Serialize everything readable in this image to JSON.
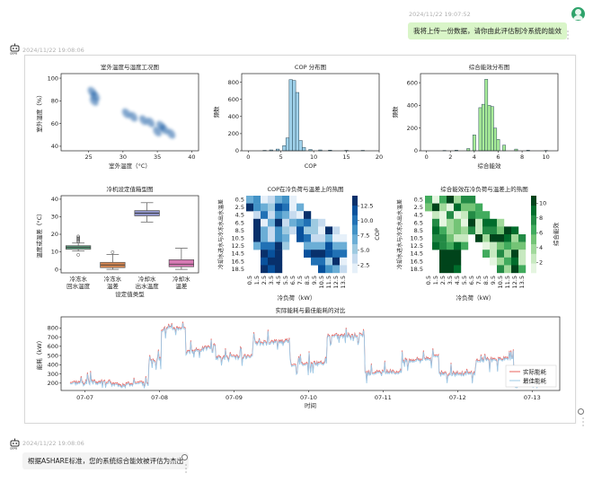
{
  "messages": {
    "user": {
      "timestamp": "2024/11/22 19:07:52",
      "text": "我将上传一份数据，请你由此评估制冷系统的能效"
    },
    "bot_chart": {
      "timestamp": "2024/11/22 19:08:06"
    },
    "bot_text": {
      "timestamp": "2024/11/22 19:08:06",
      "text": "根据ASHARE标准，您的系统综合能效被评估为杰出"
    }
  },
  "icons": {
    "user_avatar": "user-avatar-icon",
    "bot": "robot-icon",
    "more": "more-vertical-icon",
    "radio": "radio-circle-icon"
  },
  "colors": {
    "user_bubble": "#d9f5c8",
    "bot_bubble": "#f3f3f3",
    "scatter": "#1f5fa6",
    "cop_hist": "#9fd1ea",
    "eff_hist": "#a8ec98",
    "actual_line": "#e8635e",
    "best_line": "#9cc8e6"
  },
  "chart_data": [
    {
      "type": "scatter",
      "title": "室外温度与湿度工况图",
      "xlabel": "室外温度（°C）",
      "ylabel": "室外湿度（%）",
      "xticks": [
        "25",
        "30",
        "35",
        "40"
      ],
      "yticks": [
        "40",
        "60",
        "80",
        "100"
      ],
      "xlim": [
        21,
        41
      ],
      "ylim": [
        36,
        104
      ],
      "clusters": [
        {
          "x": 25.5,
          "y": 88
        },
        {
          "x": 26.0,
          "y": 84
        },
        {
          "x": 25.8,
          "y": 80
        },
        {
          "x": 30.5,
          "y": 69
        },
        {
          "x": 31.5,
          "y": 66
        },
        {
          "x": 33.0,
          "y": 63
        },
        {
          "x": 34.0,
          "y": 61
        },
        {
          "x": 35.5,
          "y": 58
        },
        {
          "x": 36.0,
          "y": 55
        },
        {
          "x": 35.0,
          "y": 53
        },
        {
          "x": 37.0,
          "y": 51
        }
      ]
    },
    {
      "type": "bar",
      "title": "COP 分布图",
      "xlabel": "COP",
      "ylabel": "频数",
      "xticks": [
        "0",
        "5",
        "10",
        "15",
        "20"
      ],
      "yticks": [
        "0",
        "200",
        "400",
        "600",
        "800"
      ],
      "xlim": [
        -1,
        20
      ],
      "ylim": [
        0,
        900
      ],
      "bins": [
        {
          "x": 2.5,
          "count": 5
        },
        {
          "x": 3.5,
          "count": 10
        },
        {
          "x": 4.5,
          "count": 20
        },
        {
          "x": 5.5,
          "count": 60
        },
        {
          "x": 6.0,
          "count": 150
        },
        {
          "x": 6.5,
          "count": 830
        },
        {
          "x": 7.0,
          "count": 820
        },
        {
          "x": 7.5,
          "count": 680
        },
        {
          "x": 8.0,
          "count": 120
        },
        {
          "x": 8.5,
          "count": 40
        },
        {
          "x": 9.5,
          "count": 15
        },
        {
          "x": 11.0,
          "count": 10
        },
        {
          "x": 12.5,
          "count": 8
        },
        {
          "x": 15.0,
          "count": 5
        },
        {
          "x": 17.5,
          "count": 5
        }
      ]
    },
    {
      "type": "bar",
      "title": "综合能效分布图",
      "xlabel": "综合能效",
      "ylabel": "频数",
      "xticks": [
        "0",
        "2",
        "4",
        "6",
        "8",
        "10"
      ],
      "yticks": [
        "0",
        "200",
        "400",
        "600"
      ],
      "xlim": [
        -0.5,
        11
      ],
      "ylim": [
        0,
        680
      ],
      "bins": [
        {
          "x": 1.5,
          "count": 3
        },
        {
          "x": 2.5,
          "count": 5
        },
        {
          "x": 3.5,
          "count": 20
        },
        {
          "x": 4.0,
          "count": 140
        },
        {
          "x": 4.5,
          "count": 380
        },
        {
          "x": 4.75,
          "count": 410
        },
        {
          "x": 5.0,
          "count": 630
        },
        {
          "x": 5.25,
          "count": 400
        },
        {
          "x": 5.5,
          "count": 390
        },
        {
          "x": 5.75,
          "count": 200
        },
        {
          "x": 6.0,
          "count": 100
        },
        {
          "x": 6.5,
          "count": 50
        },
        {
          "x": 7.5,
          "count": 15
        },
        {
          "x": 8.5,
          "count": 5
        },
        {
          "x": 10.0,
          "count": 3
        }
      ]
    },
    {
      "type": "box",
      "title": "冷机设定值箱型图",
      "xlabel": "设定值类型",
      "ylabel": "温度或温差（°C）",
      "categories": [
        "冷冻水\n回水温度",
        "冷冻水\n温差",
        "冷却水\n出水温度",
        "冷却水\n温差"
      ],
      "category_lines": [
        [
          "冷冻水",
          "回水温度"
        ],
        [
          "冷冻水",
          "温差"
        ],
        [
          "冷却水",
          "出水温度"
        ],
        [
          "冷却水",
          "温差"
        ]
      ],
      "yticks": [
        "0",
        "10",
        "20",
        "30",
        "40"
      ],
      "ylim": [
        -2,
        42
      ],
      "boxes": [
        {
          "min": 10.5,
          "q1": 11.5,
          "median": 12.5,
          "q3": 13.5,
          "max": 15.0,
          "color": "#5a9a7a"
        },
        {
          "min": 0,
          "q1": 1.0,
          "median": 2.5,
          "q3": 4.0,
          "max": 8.5,
          "color": "#d98a55"
        },
        {
          "min": 27,
          "q1": 30.5,
          "median": 32,
          "q3": 33.5,
          "max": 38,
          "color": "#8e92c6"
        },
        {
          "min": 0,
          "q1": 1.5,
          "median": 3.0,
          "q3": 5.5,
          "max": 12.0,
          "color": "#d77ab4"
        }
      ]
    },
    {
      "type": "heatmap",
      "title": "COP在冷负荷与温差上的热图",
      "xlabel": "冷负荷（kW）",
      "ylabel": "冷却水进水与冷冻水出水温差",
      "yticks": [
        "0.5",
        "2.5",
        "4.5",
        "6.5",
        "8.5",
        "10.5",
        "12.5",
        "14.5",
        "16.5",
        "18.5"
      ],
      "xticks": [
        "0.5",
        "1.5",
        "2.5",
        "3.5",
        "4.5",
        "5.5",
        "6.5",
        "7.5",
        "8.5",
        "9.5",
        "10.5",
        "11.5",
        "12.5",
        "13.5"
      ],
      "colorbar_label": "COP",
      "colorbar_ticks": [
        "2.5",
        "5.0",
        "7.5",
        "10.0",
        "12.5"
      ]
    },
    {
      "type": "heatmap",
      "title": "综合能效在冷负荷与温差上的热图",
      "xlabel": "冷负荷（kW）",
      "ylabel": "冷却水进水与冷冻水出水温差",
      "yticks": [
        "0.5",
        "2.5",
        "4.5",
        "6.5",
        "8.5",
        "10.5",
        "12.5",
        "14.5",
        "16.5",
        "18.5"
      ],
      "xticks": [
        "0.5",
        "1.5",
        "2.5",
        "3.5",
        "4.5",
        "5.5",
        "6.5",
        "7.5",
        "8.5",
        "9.5",
        "10.5",
        "11.5",
        "12.5",
        "13.5"
      ],
      "colorbar_label": "综合能效",
      "colorbar_ticks": [
        "2",
        "4",
        "6",
        "8",
        "10"
      ]
    },
    {
      "type": "line",
      "title": "实际能耗与最佳能耗的对比",
      "xlabel": "时间",
      "ylabel": "能耗（kW）",
      "xticks": [
        "07-07",
        "07-08",
        "07-09",
        "07-10",
        "07-11",
        "07-12",
        "07-13"
      ],
      "yticks": [
        "200",
        "300",
        "400",
        "500",
        "600",
        "700",
        "800"
      ],
      "ylim": [
        120,
        920
      ],
      "legend": [
        "实际能耗",
        "最佳能耗"
      ],
      "legend_position": "lower-right"
    }
  ]
}
